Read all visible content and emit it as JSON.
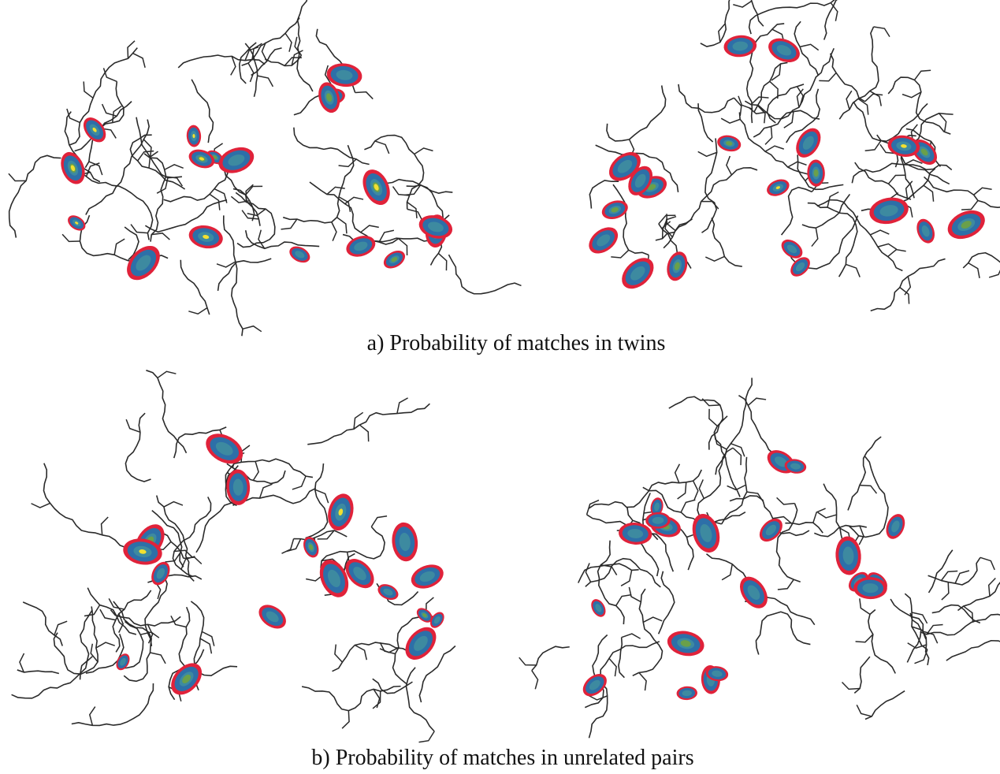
{
  "figure": {
    "panels": [
      {
        "caption": "a) Probability of matches in twins"
      },
      {
        "caption": "b) Probability of matches in unrelated pairs"
      }
    ]
  }
}
